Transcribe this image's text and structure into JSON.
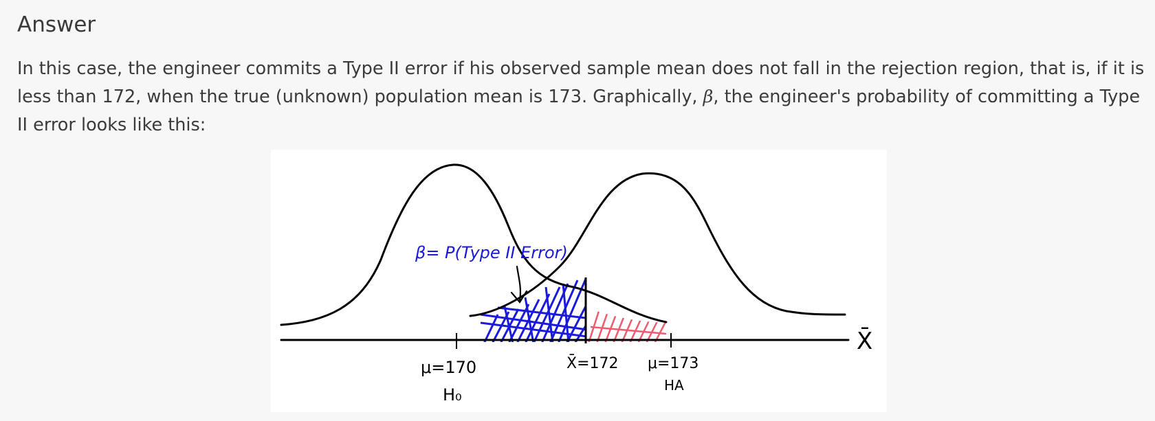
{
  "answer": {
    "heading": "Answer",
    "text_part1": "In this case, the engineer commits a Type II error if his observed sample mean does not fall in the rejection region, that is, if it is less than 172, when the true (unknown) population mean is 173. Graphically, ",
    "beta_symbol": "β",
    "text_part2": ", the engineer's probability of committing a Type II error looks like this:"
  },
  "figure": {
    "beta_label": "β= P(Type II Error)",
    "axis_symbol": "X̄",
    "mu0_label": "μ=170",
    "h0_label": "H₀",
    "xbar_label": "X̄=172",
    "mu_a_label": "μ=173",
    "ha_label": "HA",
    "colors": {
      "ink": "#000000",
      "beta_region": "#1a1adb",
      "alpha_region": "#ee5a6e"
    }
  }
}
